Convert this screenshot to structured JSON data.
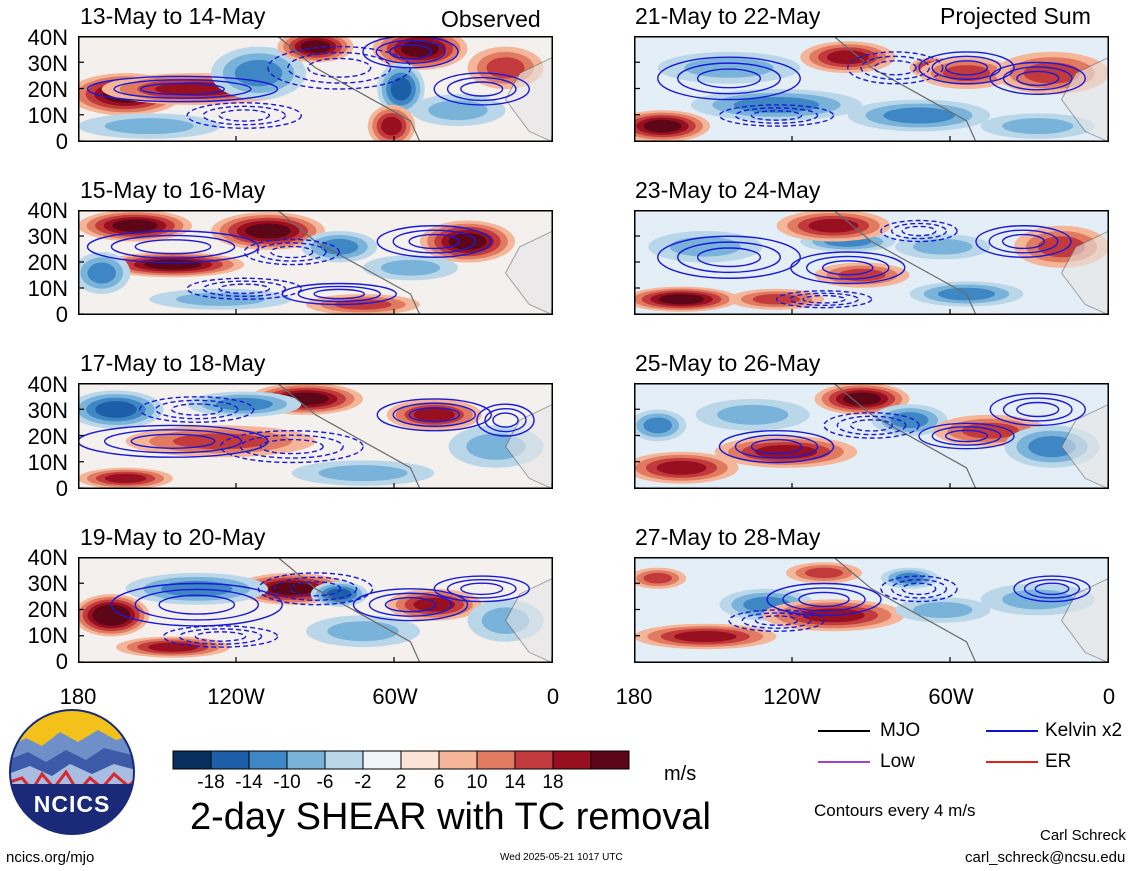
{
  "header": {
    "observed_label": "Observed",
    "projected_label": "Projected Sum"
  },
  "panels_left": [
    {
      "title": "13-May to 14-May"
    },
    {
      "title": "15-May to 16-May"
    },
    {
      "title": "17-May to 18-May"
    },
    {
      "title": "19-May to 20-May"
    }
  ],
  "panels_right": [
    {
      "title": "21-May to 22-May"
    },
    {
      "title": "23-May to 24-May"
    },
    {
      "title": "25-May to 26-May"
    },
    {
      "title": "27-May to 28-May"
    }
  ],
  "y_ticks": [
    "40N",
    "30N",
    "20N",
    "10N",
    "0"
  ],
  "x_ticks": [
    "180",
    "120W",
    "60W",
    "0"
  ],
  "colorbar": {
    "labels": [
      "-18",
      "-14",
      "-10",
      "-6",
      "-2",
      "2",
      "6",
      "10",
      "14",
      "18"
    ],
    "colors": [
      "#08305e",
      "#1c5fa8",
      "#3f86c4",
      "#79b3da",
      "#bad7ea",
      "#eef4f8",
      "#fbe3d6",
      "#f4b598",
      "#e07b62",
      "#c33a3c",
      "#98101f",
      "#5c0618"
    ],
    "units": "m/s"
  },
  "title": "2-day SHEAR with TC removal",
  "legend": {
    "items": [
      {
        "label": "MJO",
        "color": "#000000"
      },
      {
        "label": "Kelvin x2",
        "color": "#1010d0"
      },
      {
        "label": "Low",
        "color": "#a040d0"
      },
      {
        "label": "ER",
        "color": "#e02020"
      }
    ],
    "contour_note": "Contours every 4 m/s"
  },
  "footer": {
    "left": "ncics.org/mjo",
    "timestamp": "Wed 2025-05-21 1017 UTC",
    "author": "Carl Schreck",
    "email": "carl_schreck@ncsu.edu"
  },
  "logo": {
    "text": "NCICS"
  }
}
